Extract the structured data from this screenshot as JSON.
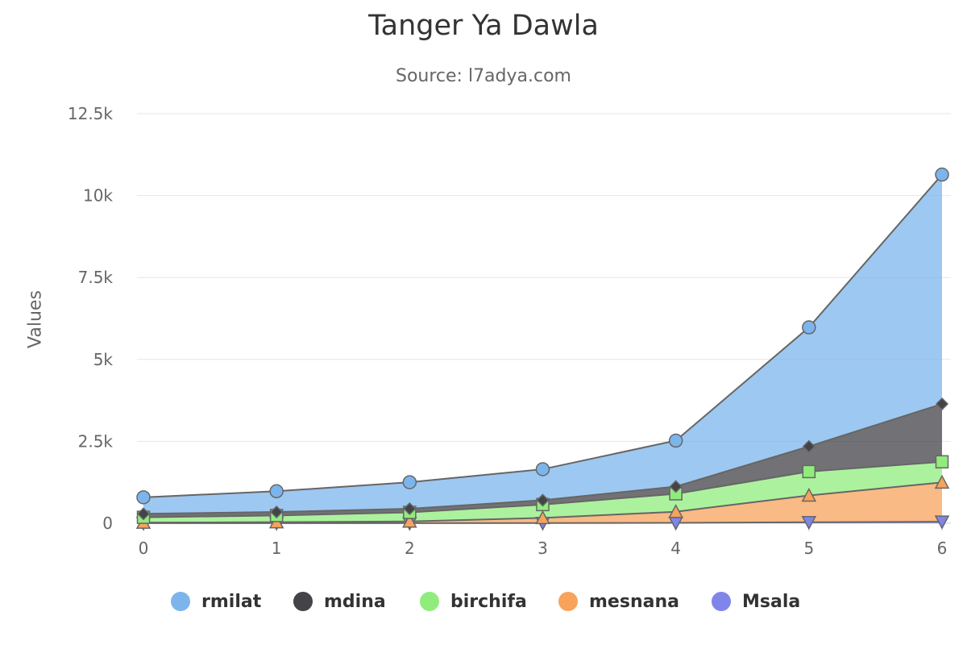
{
  "chart_data": {
    "type": "area",
    "stacked": true,
    "title": "Tanger Ya Dawla",
    "subtitle": "Source: l7adya.com",
    "xlabel": "",
    "ylabel": "Values",
    "x": [
      0,
      1,
      2,
      3,
      4,
      5,
      6
    ],
    "ylim": [
      0,
      12500
    ],
    "yticks": [
      0,
      2500,
      5000,
      7500,
      10000,
      12500
    ],
    "ytick_labels": [
      "0",
      "2.5k",
      "5k",
      "7.5k",
      "10k",
      "12.5k"
    ],
    "grid": true,
    "legend_position": "bottom",
    "series": [
      {
        "name": "rmilat",
        "color": "#7cb5ec",
        "marker": "circle",
        "values": [
          502,
          635,
          809,
          947,
          1402,
          3634,
          7000
        ]
      },
      {
        "name": "mdina",
        "color": "#434348",
        "marker": "diamond",
        "values": [
          106,
          107,
          111,
          133,
          221,
          767,
          1766
        ]
      },
      {
        "name": "birchifa",
        "color": "#90ed7d",
        "marker": "square",
        "values": [
          163,
          203,
          276,
          408,
          547,
          729,
          628
        ]
      },
      {
        "name": "mesnana",
        "color": "#f7a35c",
        "marker": "triangle",
        "values": [
          18,
          31,
          54,
          156,
          339,
          818,
          1201
        ]
      },
      {
        "name": "Msala",
        "color": "#8085e9",
        "marker": "triangle-down",
        "values": [
          2,
          2,
          2,
          6,
          13,
          30,
          46
        ]
      }
    ]
  }
}
